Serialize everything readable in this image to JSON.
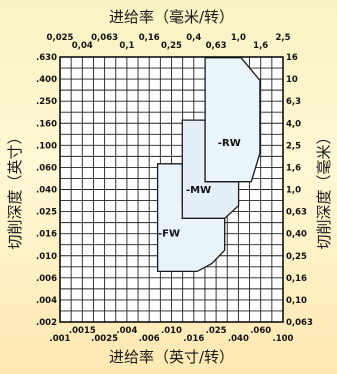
{
  "chart_data": {
    "type": "area",
    "title": "",
    "top_axis": {
      "label": "进给率（毫米/转）",
      "ticks": [
        "0,025",
        "0,04",
        "0,063",
        "0,1",
        "0,16",
        "0,25",
        "0,4",
        "0,63",
        "1,0",
        "1,6",
        "2,5"
      ],
      "range": [
        0.025,
        2.5
      ]
    },
    "bottom_axis": {
      "label": "进给率（英寸/转）",
      "ticks": [
        ".001",
        ".0015",
        ".0025",
        ".004",
        ".006",
        ".010",
        ".016",
        ".025",
        ".040",
        ".060",
        ".100"
      ],
      "range": [
        0.001,
        0.1
      ],
      "scale": "log"
    },
    "left_axis": {
      "label": "切削深度（英寸）",
      "ticks": [
        ".002",
        ".004",
        ".006",
        ".010",
        ".016",
        ".025",
        ".040",
        ".060",
        ".100",
        ".160",
        ".250",
        ".400",
        ".630"
      ],
      "range": [
        0.002,
        0.63
      ],
      "scale": "log"
    },
    "right_axis": {
      "label": "切削深度（毫米）",
      "ticks": [
        "0,063",
        "0,10",
        "0,16",
        "0,25",
        "0,40",
        "0,63",
        "1,0",
        "1,6",
        "2,5",
        "4,0",
        "6,3",
        "10",
        "16"
      ],
      "range": [
        0.05,
        16
      ]
    },
    "grid": true,
    "series": [
      {
        "name": "-FW",
        "color": "#e9f3fa",
        "polygon": [
          [
            0.0075,
            0.006
          ],
          [
            0.0075,
            0.062
          ],
          [
            0.0125,
            0.062
          ],
          [
            0.0125,
            0.025
          ],
          [
            0.03,
            0.025
          ],
          [
            0.03,
            0.0095
          ],
          [
            0.023,
            0.0071
          ],
          [
            0.017,
            0.006
          ]
        ],
        "label_at": [
          0.0095,
          0.014
        ]
      },
      {
        "name": "-MW",
        "color": "#e4eff8",
        "polygon": [
          [
            0.0125,
            0.019
          ],
          [
            0.0125,
            0.16
          ],
          [
            0.02,
            0.16
          ],
          [
            0.02,
            0.042
          ],
          [
            0.04,
            0.042
          ],
          [
            0.04,
            0.025
          ],
          [
            0.03,
            0.019
          ]
        ],
        "label_at": [
          0.0175,
          0.036
        ]
      },
      {
        "name": "-RW",
        "color": "#eaf4fb",
        "polygon": [
          [
            0.02,
            0.042
          ],
          [
            0.02,
            0.62
          ],
          [
            0.042,
            0.62
          ],
          [
            0.062,
            0.38
          ],
          [
            0.062,
            0.078
          ],
          [
            0.052,
            0.042
          ]
        ],
        "label_at": [
          0.033,
          0.1
        ]
      }
    ]
  }
}
